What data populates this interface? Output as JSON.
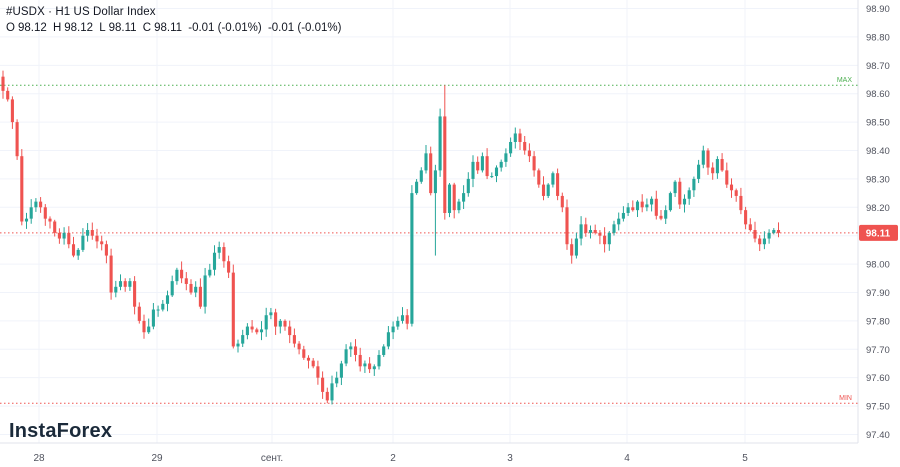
{
  "header": {
    "symbol_line": "#USDX · H1 US Dollar Index",
    "ohlc": {
      "o_label": "O",
      "o": "98.12",
      "h_label": "H",
      "h": "98.12",
      "l_label": "L",
      "l": "98.11",
      "c_label": "C",
      "c": "98.11",
      "change": "-0.01 (-0.01%)",
      "change2": "-0.01 (-0.01%)"
    }
  },
  "logo": "InstaForex",
  "colors": {
    "up": "#26a69a",
    "down": "#ef5350",
    "max_line": "#4caf50",
    "min_line": "#ef5350",
    "price_tag": "#ef5350",
    "grid": "#f0f3fa"
  },
  "chart_data": {
    "type": "candlestick",
    "timeframe": "H1",
    "y_ticks": [
      97.4,
      97.5,
      97.6,
      97.7,
      97.8,
      97.9,
      98.0,
      98.1,
      98.2,
      98.3,
      98.4,
      98.5,
      98.6,
      98.7,
      98.8,
      98.9
    ],
    "y_tick_labels": [
      "97.40",
      "97.50",
      "97.60",
      "97.70",
      "97.80",
      "97.90",
      "98.00",
      "98.10",
      "98.20",
      "98.30",
      "98.40",
      "98.50",
      "98.60",
      "98.70",
      "98.80",
      "98.90"
    ],
    "ylim": [
      97.37,
      98.93
    ],
    "x_tick_labels": [
      "28",
      "29",
      "сент.",
      "2",
      "3",
      "4",
      "5"
    ],
    "max_level": {
      "label": "MAX",
      "value": 98.63
    },
    "min_level": {
      "label": "MIN",
      "value": 97.51
    },
    "last_price": {
      "label": "98.11",
      "value": 98.11
    },
    "closes": [
      98.61,
      98.58,
      98.5,
      98.38,
      98.15,
      98.16,
      98.2,
      98.22,
      98.2,
      98.16,
      98.15,
      98.11,
      98.09,
      98.11,
      98.07,
      98.03,
      98.05,
      98.1,
      98.12,
      98.1,
      98.08,
      98.07,
      98.03,
      97.9,
      97.92,
      97.94,
      97.92,
      97.94,
      97.85,
      97.8,
      97.76,
      97.78,
      97.84,
      97.84,
      97.86,
      97.89,
      97.94,
      97.98,
      97.95,
      97.93,
      97.9,
      97.92,
      97.85,
      97.96,
      97.98,
      98.04,
      98.06,
      98.01,
      97.97,
      97.71,
      97.72,
      97.75,
      97.78,
      97.77,
      97.76,
      97.77,
      97.82,
      97.83,
      97.78,
      97.8,
      97.78,
      97.75,
      97.72,
      97.7,
      97.67,
      97.66,
      97.64,
      97.6,
      97.55,
      97.52,
      97.58,
      97.6,
      97.65,
      97.7,
      97.71,
      97.68,
      97.64,
      97.65,
      97.63,
      97.64,
      97.68,
      97.71,
      97.76,
      97.78,
      97.8,
      97.82,
      97.79,
      98.25,
      98.29,
      98.33,
      98.39,
      98.25,
      98.33,
      98.52,
      98.18,
      98.28,
      98.19,
      98.22,
      98.25,
      98.3,
      98.36,
      98.33,
      98.38,
      98.31,
      98.31,
      98.34,
      98.36,
      98.39,
      98.43,
      98.46,
      98.43,
      98.4,
      98.38,
      98.33,
      98.28,
      98.24,
      98.28,
      98.32,
      98.24,
      98.2,
      98.07,
      98.03,
      98.09,
      98.14,
      98.11,
      98.12,
      98.11,
      98.1,
      98.07,
      98.11,
      98.14,
      98.16,
      98.18,
      98.2,
      98.19,
      98.22,
      98.2,
      98.21,
      98.23,
      98.17,
      98.16,
      98.19,
      98.25,
      98.29,
      98.21,
      98.23,
      98.26,
      98.3,
      98.35,
      98.4,
      98.34,
      98.32,
      98.37,
      98.33,
      98.28,
      98.26,
      98.24,
      98.19,
      98.14,
      98.12,
      98.09,
      98.07,
      98.09,
      98.11,
      98.12,
      98.11
    ]
  }
}
